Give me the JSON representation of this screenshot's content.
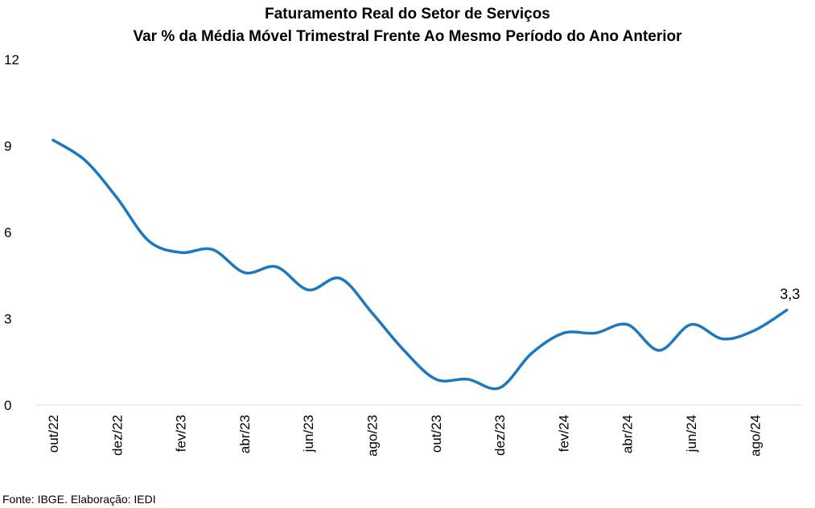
{
  "chart_data": {
    "type": "line",
    "title": "Faturamento Real do Setor de Serviços",
    "subtitle": "Var % da Média Móvel Trimestral Frente Ao Mesmo Período do Ano Anterior",
    "xlabel": "",
    "ylabel": "",
    "ylim": [
      0,
      12
    ],
    "yticks": [
      "0",
      "3",
      "6",
      "9",
      "12"
    ],
    "grid": false,
    "x": [
      "out/22",
      "nov/22",
      "dez/22",
      "jan/23",
      "fev/23",
      "mar/23",
      "abr/23",
      "mai/23",
      "jun/23",
      "jul/23",
      "ago/23",
      "set/23",
      "out/23",
      "nov/23",
      "dez/23",
      "jan/24",
      "fev/24",
      "mar/24",
      "abr/24",
      "mai/24",
      "jun/24",
      "jul/24",
      "ago/24",
      "set/24"
    ],
    "x_tick_labels": [
      "out/22",
      "dez/22",
      "fev/23",
      "abr/23",
      "jun/23",
      "ago/23",
      "out/23",
      "dez/23",
      "fev/24",
      "abr/24",
      "jun/24",
      "ago/24"
    ],
    "series": [
      {
        "color": "#1F77BE",
        "values": [
          9.2,
          8.5,
          7.2,
          5.7,
          5.3,
          5.4,
          4.6,
          4.8,
          4.0,
          4.4,
          3.2,
          1.9,
          0.9,
          0.9,
          0.6,
          1.8,
          2.5,
          2.5,
          2.8,
          1.9,
          2.8,
          2.3,
          2.6,
          3.3
        ]
      }
    ],
    "last_point_label": "3,3"
  },
  "source": "Fonte: IBGE. Elaboração: IEDI"
}
